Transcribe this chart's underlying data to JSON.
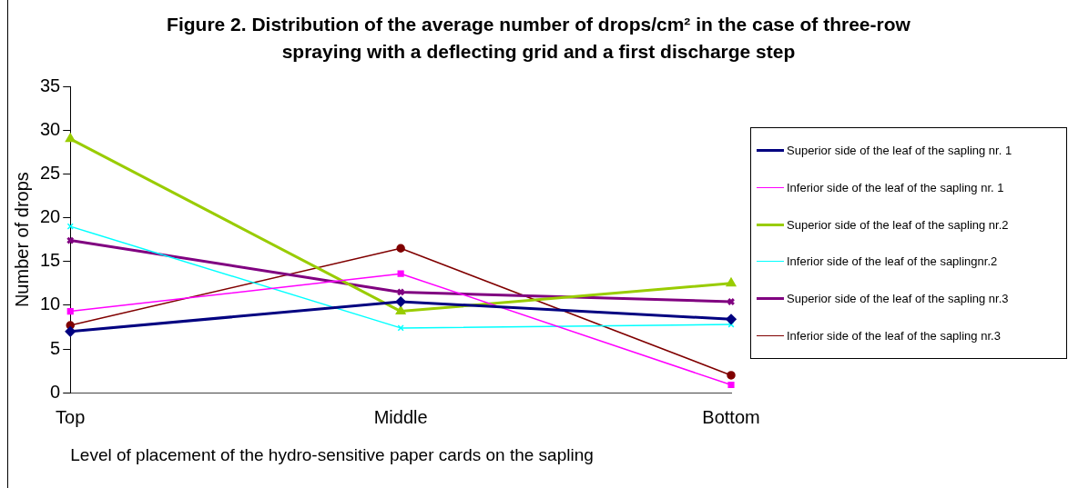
{
  "chart_data": {
    "type": "line",
    "title": "Figure 2. Distribution of the average number of drops/cm² in the case of three-row spraying with a deflecting grid  and a first discharge step",
    "xlabel": "Level of placement of the hydro-sensitive paper cards on the sapling",
    "ylabel": "Number of drops",
    "categories": [
      "Top",
      "Middle",
      "Bottom"
    ],
    "series": [
      {
        "name": "Superior side of the leaf of the sapling nr. 1",
        "color": "#000080",
        "marker": "diamond",
        "values": [
          7.0,
          10.4,
          8.4
        ]
      },
      {
        "name": "Inferior side of the leaf of the sapling nr. 1",
        "color": "#ff00ff",
        "marker": "square",
        "values": [
          9.3,
          13.6,
          0.9
        ]
      },
      {
        "name": "Superior side of the leaf of the sapling nr.2",
        "color": "#99cc00",
        "marker": "triangle",
        "values": [
          29.0,
          9.3,
          12.5
        ]
      },
      {
        "name": "Inferior side of the leaf of the saplingnr.2",
        "color": "#00ffff",
        "marker": "cross",
        "values": [
          19.0,
          7.4,
          7.8
        ]
      },
      {
        "name": "Superior side of the leaf of the sapling nr.3",
        "color": "#800080",
        "marker": "cross",
        "values": [
          17.4,
          11.5,
          10.4
        ]
      },
      {
        "name": "Inferior side of the leaf of the sapling nr.3",
        "color": "#800000",
        "marker": "circle",
        "values": [
          7.7,
          16.5,
          2.0
        ]
      }
    ],
    "ylim": [
      0,
      35
    ],
    "yticks": [
      0,
      5,
      10,
      15,
      20,
      25,
      30,
      35
    ],
    "grid": false,
    "legend": "right",
    "line_style": "solid"
  }
}
